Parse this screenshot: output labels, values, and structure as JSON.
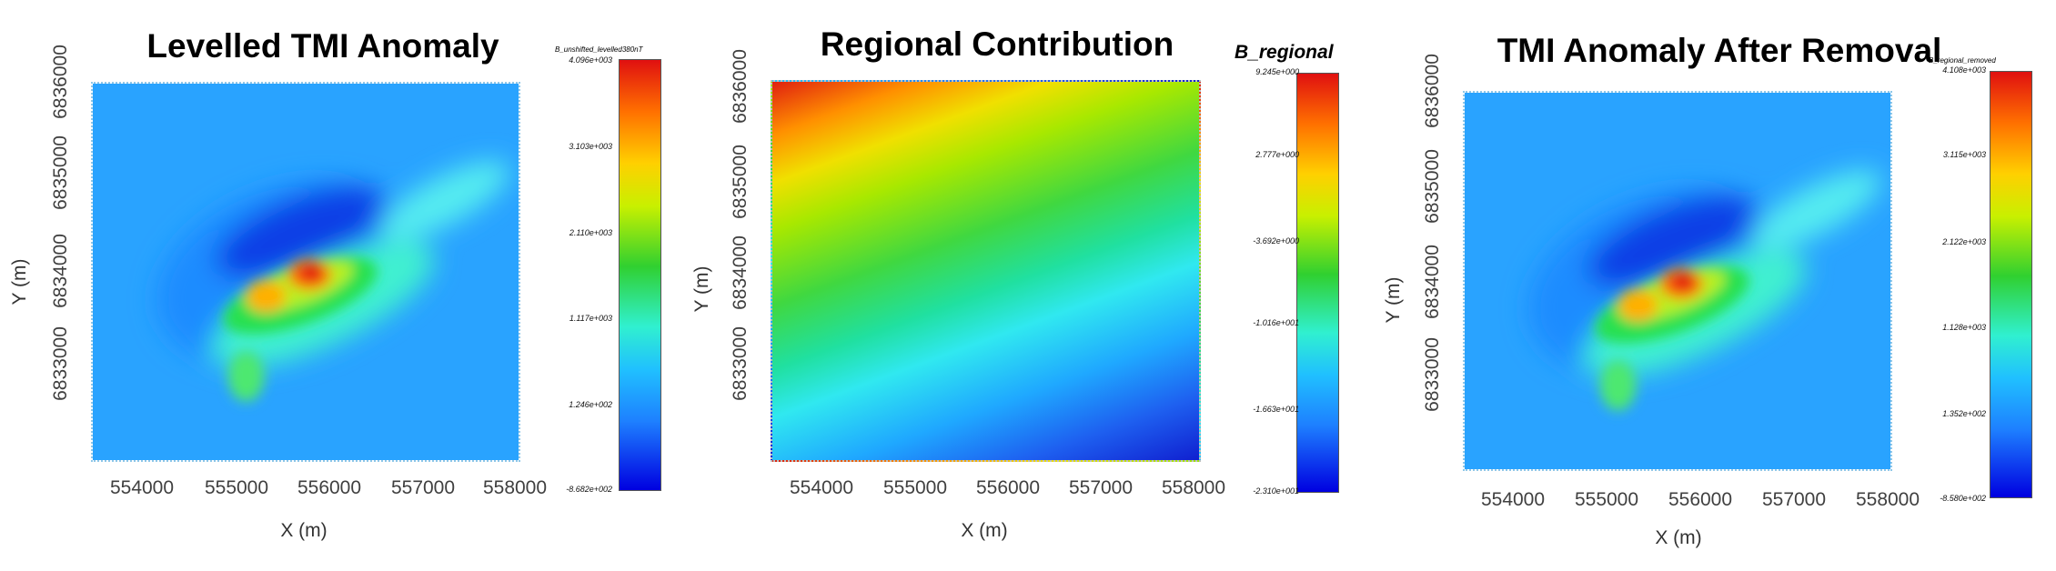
{
  "panels": [
    {
      "title": "Levelled TMI Anomaly",
      "xlabel": "X (m)",
      "ylabel": "Y (m)",
      "xticks": [
        "554000",
        "555000",
        "556000",
        "557000",
        "558000"
      ],
      "yticks": [
        "6833000",
        "6834000",
        "6835000",
        "6836000"
      ],
      "colorbar": {
        "title": "B_unshifted_levelled380nT",
        "ticks": [
          "4.096e+003",
          "3.103e+003",
          "2.110e+003",
          "1.117e+003",
          "1.246e+002",
          "-8.682e+002"
        ]
      }
    },
    {
      "title": "Regional Contribution",
      "xlabel": "X (m)",
      "ylabel": "Y (m)",
      "xticks": [
        "554000",
        "555000",
        "556000",
        "557000",
        "558000"
      ],
      "yticks": [
        "6833000",
        "6834000",
        "6835000",
        "6836000"
      ],
      "colorbar": {
        "title": "B_regional",
        "ticks": [
          "9.245e+000",
          "2.777e+000",
          "-3.692e+000",
          "-1.016e+001",
          "-1.663e+001",
          "-2.310e+001"
        ]
      }
    },
    {
      "title": "TMI Anomaly After Removal",
      "xlabel": "X (m)",
      "ylabel": "Y (m)",
      "xticks": [
        "554000",
        "555000",
        "556000",
        "557000",
        "558000"
      ],
      "yticks": [
        "6833000",
        "6834000",
        "6835000",
        "6836000"
      ],
      "colorbar": {
        "title": "B_regional_removed",
        "ticks": [
          "4.108e+003",
          "3.115e+003",
          "2.122e+003",
          "1.128e+003",
          "1.352e+002",
          "-8.580e+002"
        ]
      }
    }
  ],
  "chart_data": [
    {
      "type": "heatmap",
      "title": "Levelled TMI Anomaly",
      "xlabel": "X (m)",
      "ylabel": "Y (m)",
      "xlim": [
        553500,
        558000
      ],
      "ylim": [
        6832300,
        6836300
      ],
      "colorbar_range": [
        -868.2,
        4096
      ],
      "colormap": "rainbow (blue-cyan-green-yellow-red)",
      "features": [
        {
          "label": "main anomaly high (red)",
          "x": 555700,
          "y": 6834050,
          "value": 4000
        },
        {
          "label": "secondary high (orange)",
          "x": 555150,
          "y": 6833850,
          "value": 3400
        },
        {
          "label": "southern lobe",
          "x": 555050,
          "y": 6833100,
          "value": 1800
        },
        {
          "label": "NE elongated ridge (cyan)",
          "x": 557000,
          "y": 6835200,
          "value": 700
        },
        {
          "label": "northern low (dark blue)",
          "x": 555300,
          "y": 6834600,
          "value": -800
        }
      ]
    },
    {
      "type": "heatmap",
      "title": "Regional Contribution",
      "xlabel": "X (m)",
      "ylabel": "Y (m)",
      "xlim": [
        553500,
        558000
      ],
      "ylim": [
        6832300,
        6836300
      ],
      "colorbar_range": [
        -23.1,
        9.245
      ],
      "colormap": "rainbow (blue-cyan-green-yellow-red)",
      "description_values": {
        "top_left": 9.2,
        "bottom_right": -23.1
      }
    },
    {
      "type": "heatmap",
      "title": "TMI Anomaly After Removal",
      "xlabel": "X (m)",
      "ylabel": "Y (m)",
      "xlim": [
        553500,
        558000
      ],
      "ylim": [
        6832300,
        6836300
      ],
      "colorbar_range": [
        -858,
        4108
      ],
      "colormap": "rainbow (blue-cyan-green-yellow-red)",
      "features": [
        {
          "label": "main anomaly high (red)",
          "x": 555700,
          "y": 6834050,
          "value": 4000
        },
        {
          "label": "secondary high (orange)",
          "x": 555150,
          "y": 6833850,
          "value": 3400
        },
        {
          "label": "southern lobe",
          "x": 555050,
          "y": 6833100,
          "value": 1800
        },
        {
          "label": "NE elongated ridge (cyan)",
          "x": 557000,
          "y": 6835200,
          "value": 700
        },
        {
          "label": "northern low (dark blue)",
          "x": 555300,
          "y": 6834600,
          "value": -800
        }
      ]
    }
  ]
}
